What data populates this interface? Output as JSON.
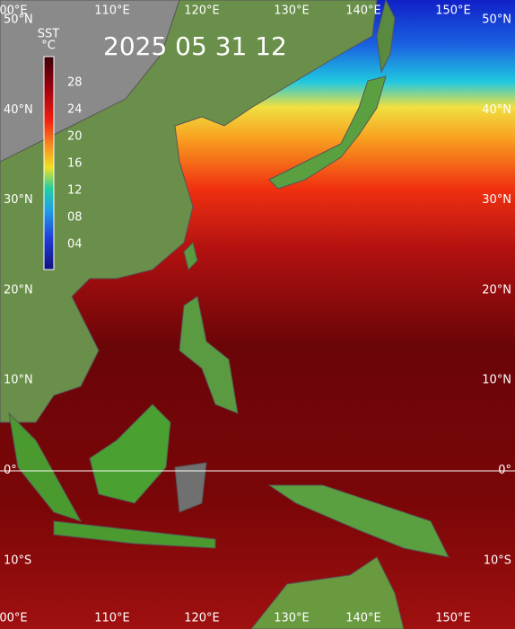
{
  "map": {
    "title": "2025 05 31 12",
    "colorbar": {
      "title": "SST",
      "unit": "°C",
      "labels": [
        "28",
        "24",
        "20",
        "16",
        "12",
        "08",
        "04"
      ]
    },
    "lon_labels": [
      "00°E",
      "110°E",
      "120°E",
      "130°E",
      "140°E",
      "150°E"
    ],
    "lat_labels": [
      "50°N",
      "40°N",
      "30°N",
      "20°N",
      "10°N",
      "0°",
      "10°S"
    ]
  }
}
